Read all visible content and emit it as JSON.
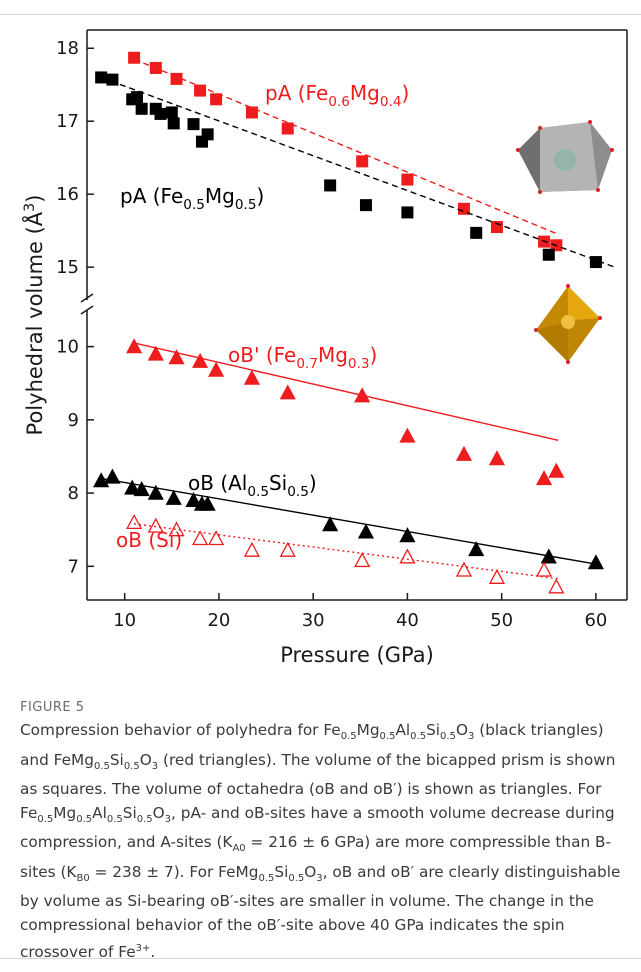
{
  "chart_data": {
    "type": "scatter",
    "y_label": [
      "Polyhedral volume (Å",
      {
        "sup": "3"
      },
      ")"
    ],
    "x_label": "Pressure (GPa)",
    "xlim": [
      6,
      63.3
    ],
    "xticks": [
      10,
      20,
      30,
      40,
      50,
      60
    ],
    "panels": [
      {
        "ylim": [
          14.55,
          18.25
        ],
        "yticks": [
          15,
          16,
          17,
          18
        ],
        "series": [
          {
            "name": [
              "pA (Fe",
              {
                "sub": "0.6"
              },
              "Mg",
              {
                "sub": "0.4"
              },
              ")"
            ],
            "color": "#ee1c1c",
            "marker": "square",
            "filled": true,
            "x": [
              11,
              13.3,
              15.5,
              18,
              19.7,
              23.5,
              27.3,
              35.2,
              40,
              46,
              49.5,
              54.5,
              55.8
            ],
            "values": [
              17.87,
              17.73,
              17.58,
              17.42,
              17.3,
              17.12,
              16.9,
              16.45,
              16.2,
              15.8,
              15.55,
              15.35,
              15.3
            ],
            "fit": {
              "x": [
                11,
                56
              ],
              "values": [
                17.85,
                15.45
              ],
              "dash": "6,4"
            }
          },
          {
            "name": [
              "pA (Fe",
              {
                "sub": "0.5"
              },
              "Mg",
              {
                "sub": "0.5"
              },
              ")"
            ],
            "color": "#000000",
            "marker": "square",
            "filled": true,
            "x": [
              7.5,
              8.7,
              10.8,
              11.3,
              11.8,
              13.3,
              13.8,
              15,
              15.2,
              17.3,
              18.2,
              18.8,
              31.8,
              35.6,
              40,
              47.3,
              55,
              60
            ],
            "values": [
              17.6,
              17.57,
              17.3,
              17.33,
              17.17,
              17.17,
              17.1,
              17.12,
              16.97,
              16.96,
              16.72,
              16.82,
              16.12,
              15.85,
              15.75,
              15.47,
              15.17,
              15.07
            ],
            "fit": {
              "x": [
                7.5,
                62
              ],
              "values": [
                17.6,
                15.0
              ],
              "dash": "6,4"
            }
          }
        ]
      },
      {
        "ylim": [
          6.54,
          10.5
        ],
        "yticks": [
          7,
          8,
          9,
          10
        ],
        "series": [
          {
            "name": [
              "oB' (Fe",
              {
                "sub": "0.7"
              },
              "Mg",
              {
                "sub": "0.3"
              },
              ")"
            ],
            "color": "#ee1c1c",
            "marker": "triangle",
            "filled": true,
            "x": [
              11,
              13.3,
              15.5,
              18,
              19.7,
              23.5,
              27.3,
              35.2,
              40,
              46,
              49.5,
              54.5,
              55.8
            ],
            "values": [
              10,
              9.9,
              9.85,
              9.8,
              9.68,
              9.57,
              9.37,
              9.33,
              8.78,
              8.53,
              8.47,
              8.2,
              8.3
            ],
            "fit": {
              "x": [
                11,
                56
              ],
              "values": [
                10.05,
                8.72
              ],
              "dash": "none"
            }
          },
          {
            "name": [
              "oB (Al",
              {
                "sub": "0.5"
              },
              "Si",
              {
                "sub": "0.5"
              },
              ")"
            ],
            "color": "#000000",
            "marker": "triangle",
            "filled": true,
            "x": [
              7.5,
              8.7,
              10.8,
              11.8,
              13.3,
              15.2,
              17.3,
              18.2,
              18.8,
              31.8,
              35.6,
              40,
              47.3,
              55,
              60
            ],
            "values": [
              8.17,
              8.22,
              8.07,
              8.05,
              8.0,
              7.93,
              7.9,
              7.85,
              7.85,
              7.57,
              7.47,
              7.42,
              7.23,
              7.13,
              7.05
            ],
            "fit": {
              "x": [
                7.5,
                60
              ],
              "values": [
                8.2,
                7.03
              ],
              "dash": "none"
            }
          },
          {
            "name": [
              "oB (Si)"
            ],
            "color": "#ee1c1c",
            "marker": "triangle",
            "filled": false,
            "x": [
              11,
              13.3,
              15.5,
              18,
              19.7,
              23.5,
              27.3,
              35.2,
              40,
              46,
              49.5,
              54.5,
              55.8
            ],
            "values": [
              7.6,
              7.55,
              7.5,
              7.38,
              7.38,
              7.22,
              7.22,
              7.08,
              7.13,
              6.95,
              6.85,
              6.95,
              6.72
            ],
            "fit": {
              "x": [
                11,
                56
              ],
              "values": [
                7.58,
                6.83
              ],
              "dash": "2,3"
            }
          }
        ]
      }
    ]
  },
  "caption": {
    "label": "FIGURE 5",
    "text": [
      "Compression behavior of polyhedra for Fe",
      {
        "sub": "0.5"
      },
      "Mg",
      {
        "sub": "0.5"
      },
      "Al",
      {
        "sub": "0.5"
      },
      "Si",
      {
        "sub": "0.5"
      },
      "O",
      {
        "sub": "3"
      },
      " (black triangles) and FeMg",
      {
        "sub": "0.5"
      },
      "Si",
      {
        "sub": "0.5"
      },
      "O",
      {
        "sub": "3"
      },
      " (red triangles). The volume of the bicapped prism is shown as squares. The volume of octahedra (oB and oB′) is shown as triangles. For Fe",
      {
        "sub": "0.5"
      },
      "Mg",
      {
        "sub": "0.5"
      },
      "Al",
      {
        "sub": "0.5"
      },
      "Si",
      {
        "sub": "0.5"
      },
      "O",
      {
        "sub": "3"
      },
      ", pA- and oB-sites have a smooth volume decrease during compression, and A-sites (K",
      {
        "sub": "A0"
      },
      " = 216 ± 6 GPa) are more compressible than B-sites (K",
      {
        "sub": "B0"
      },
      " = 238 ± 7). For FeMg",
      {
        "sub": "0.5"
      },
      "Si",
      {
        "sub": "0.5"
      },
      "O",
      {
        "sub": "3"
      },
      ", oB and oB′ are clearly distinguishable by volume as Si-bearing oB′-sites are smaller in volume. The change in the compressional behavior of the oB′-site above 40 GPa indicates the spin crossover of Fe",
      {
        "sup": "3+"
      },
      "."
    ]
  }
}
